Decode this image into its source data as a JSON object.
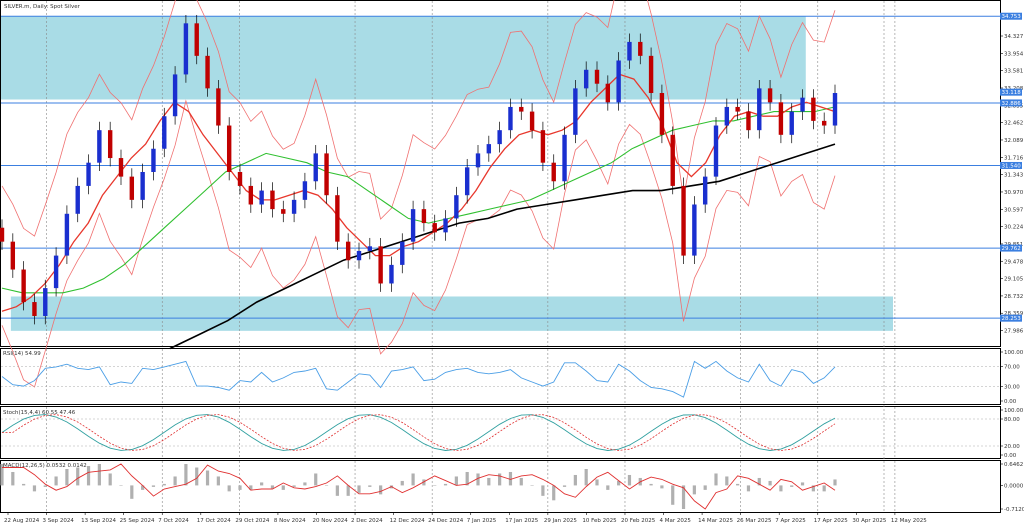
{
  "chart_data": {
    "type": "candlestick",
    "title": "SILVER.m, Daily: Spot Silver",
    "colors": {
      "bull": "#1a2fcf",
      "bear": "#c00000",
      "zone": "#a9dce6",
      "level": "#3b7fe0",
      "ma_fast": "#e8372c",
      "ma_mid": "#30c030",
      "ma_slow": "#000000",
      "bands": "#f07070",
      "rsi": "#4a9ee6",
      "stoch_main": "#30a0a0",
      "stoch_signal": "#e03030",
      "macd_hist": "#b0b0b0",
      "macd_signal": "#e03030"
    },
    "price_axis": {
      "ticks": [
        "34.327",
        "33.954",
        "33.581",
        "33.208",
        "32.835",
        "32.462",
        "32.089",
        "31.716",
        "31.343",
        "30.970",
        "30.597",
        "30.224",
        "29.851",
        "29.478",
        "29.105",
        "28.732",
        "28.359",
        "27.986"
      ],
      "range": [
        27.74,
        34.93
      ]
    },
    "price_tags": [
      {
        "value": "34.753",
        "y": 34.753,
        "color": "#3b7fe0"
      },
      {
        "value": "33.118",
        "y": 33.118,
        "color": "#3b7fe0"
      },
      {
        "value": "32.886",
        "y": 32.886,
        "color": "#3b7fe0"
      },
      {
        "value": "31.540",
        "y": 31.54,
        "color": "#3b7fe0"
      },
      {
        "value": "29.762",
        "y": 29.762,
        "color": "#3b7fe0"
      },
      {
        "value": "28.253",
        "y": 28.253,
        "color": "#3b7fe0"
      }
    ],
    "levels": [
      34.753,
      32.886,
      31.54,
      29.762,
      28.253
    ],
    "zones": [
      {
        "from": 32.96,
        "to": 34.75,
        "x_end_frac": 0.965
      },
      {
        "from": 27.98,
        "to": 28.72,
        "x_start_frac": 0.013,
        "x_end_frac": 1.07
      }
    ],
    "dates": [
      "22 Aug 2024",
      "3 Sep 2024",
      "13 Sep 2024",
      "25 Sep 2024",
      "7 Oct 2024",
      "17 Oct 2024",
      "29 Oct 2024",
      "8 Nov 2024",
      "20 Nov 2024",
      "2 Dec 2024",
      "12 Dec 2024",
      "24 Dec 2024",
      "7 Jan 2025",
      "17 Jan 2025",
      "29 Jan 2025",
      "10 Feb 2025",
      "20 Feb 2025",
      "4 Mar 2025",
      "14 Mar 2025",
      "26 Mar 2025",
      "7 Apr 2025",
      "17 Apr 2025",
      "30 Apr 2025",
      "12 May 2025"
    ],
    "vertical_grid_dates": [
      "3 Sep 2024",
      "7 Oct 2024",
      "29 Oct 2024",
      "2 Dec 2024",
      "24 Dec 2024",
      "29 Jan 2025",
      "20 Feb 2025",
      "26 Mar 2025",
      "17 Apr 2025",
      "12 May 2025"
    ],
    "closes": [
      29.9,
      29.3,
      28.6,
      28.3,
      28.9,
      29.6,
      30.5,
      31.1,
      31.6,
      32.3,
      31.7,
      31.3,
      30.8,
      31.4,
      31.9,
      32.6,
      33.5,
      34.6,
      33.9,
      33.2,
      32.4,
      31.4,
      31.1,
      30.7,
      31.0,
      30.6,
      30.5,
      30.8,
      31.2,
      31.8,
      30.9,
      29.9,
      29.5,
      29.7,
      29.8,
      29.0,
      29.4,
      29.9,
      30.6,
      30.3,
      30.1,
      30.4,
      30.9,
      31.5,
      31.8,
      32.0,
      32.3,
      32.8,
      32.7,
      32.3,
      31.6,
      31.2,
      32.2,
      33.2,
      33.6,
      33.3,
      32.9,
      33.8,
      34.2,
      33.9,
      33.1,
      32.2,
      31.1,
      29.6,
      30.7,
      31.3,
      32.4,
      32.8,
      32.7,
      32.3,
      33.2,
      32.9,
      32.2,
      32.7,
      33.0,
      32.5,
      32.4,
      33.1
    ],
    "ma_fast": [
      28.4,
      28.5,
      28.7,
      29.0,
      29.4,
      29.9,
      30.3,
      30.9,
      31.3,
      31.7,
      32.0,
      32.5,
      32.9,
      32.7,
      32.2,
      31.8,
      31.4,
      31.0,
      30.8,
      30.8,
      30.9,
      31.0,
      30.9,
      30.6,
      30.2,
      29.9,
      29.6,
      29.6,
      29.8,
      29.9,
      30.1,
      30.3,
      30.6,
      31.0,
      31.5,
      31.9,
      32.2,
      32.3,
      32.2,
      32.3,
      32.5,
      32.9,
      33.2,
      33.5,
      33.4,
      33.0,
      32.4,
      31.6,
      31.3,
      31.6,
      32.2,
      32.6,
      32.7,
      32.6,
      32.6,
      32.8,
      32.9,
      32.8,
      32.7
    ],
    "ma_mid": [
      28.9,
      28.8,
      28.8,
      28.8,
      28.9,
      29.1,
      29.4,
      29.8,
      30.2,
      30.6,
      31.0,
      31.4,
      31.6,
      31.8,
      31.7,
      31.6,
      31.4,
      31.3,
      31.0,
      30.7,
      30.4,
      30.3,
      30.4,
      30.5,
      30.6,
      30.7,
      30.8,
      31.0,
      31.2,
      31.4,
      31.6,
      31.9,
      32.1,
      32.3,
      32.4,
      32.5,
      32.5,
      32.6,
      32.7,
      32.7,
      32.7,
      32.8
    ],
    "ma_slow": [
      27.6,
      27.9,
      28.2,
      28.6,
      28.9,
      29.2,
      29.5,
      29.7,
      29.9,
      30.1,
      30.3,
      30.4,
      30.6,
      30.7,
      30.8,
      30.9,
      31.0,
      31.0,
      31.1,
      31.2,
      31.4,
      31.6,
      31.8,
      32.0
    ],
    "indicators": [
      {
        "label": "RSI(14) 54.99",
        "ticks": [
          "100.00",
          "70.00",
          "30.00",
          "0.00"
        ],
        "range": [
          0,
          100
        ]
      },
      {
        "label": "Stoch(15,4,4) 60.55 47.46",
        "ticks": [
          "100.00",
          "80.00",
          "20.00",
          "0.00"
        ],
        "range": [
          0,
          100
        ]
      },
      {
        "label": "MACD(12,26,5) 0.0532 0.0142",
        "ticks": [
          "0.6462",
          "0.0000",
          "-0.7120"
        ],
        "range": [
          -0.712,
          0.6462
        ]
      }
    ]
  }
}
